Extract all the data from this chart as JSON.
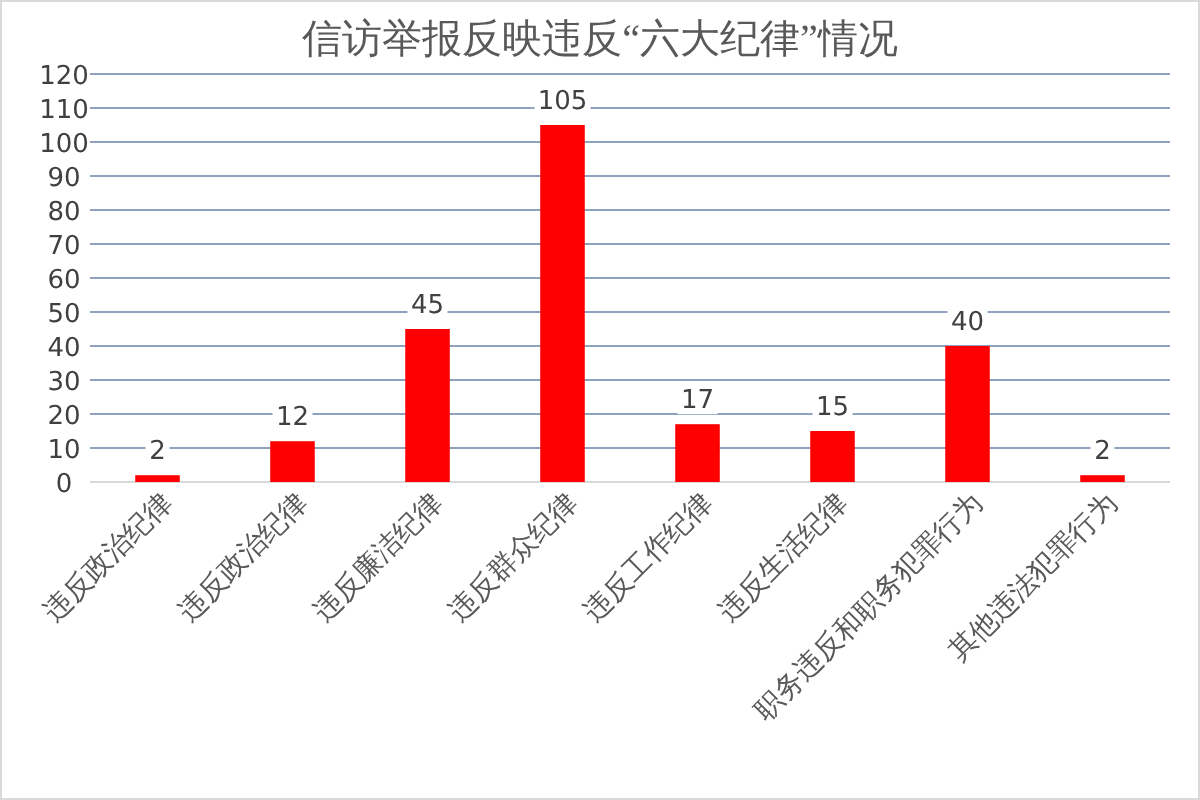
{
  "chart_data": {
    "type": "bar",
    "title": "信访举报反映违反“六大纪律”情况",
    "categories": [
      "违反政治纪律",
      "违反政治纪律",
      "违反廉洁纪律",
      "违反群众纪律",
      "违反工作纪律",
      "违反生活纪律",
      "职务违反和职务犯罪行为",
      "其他违法犯罪行为"
    ],
    "values": [
      2,
      12,
      45,
      105,
      17,
      15,
      40,
      2
    ],
    "color": "#ff0000",
    "ylim": [
      0,
      120
    ],
    "yticks": [
      0,
      10,
      20,
      30,
      40,
      50,
      60,
      70,
      80,
      90,
      100,
      110,
      120
    ],
    "grid": "y",
    "data_labels": true
  }
}
